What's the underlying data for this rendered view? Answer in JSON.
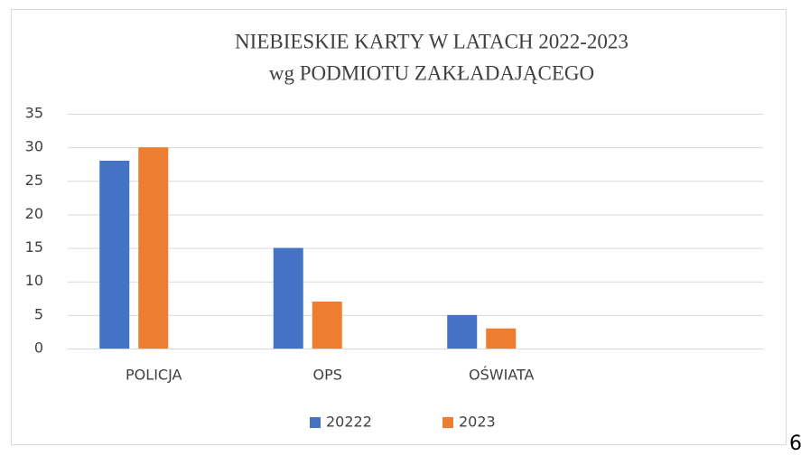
{
  "chart_data": {
    "type": "bar",
    "title": [
      "NIEBIESKIE KARTY W LATACH 2022-2023",
      "wg PODMIOTU ZAKŁADAJĄCEGO"
    ],
    "categories": [
      "POLICJA",
      "OPS",
      "OŚWIATA",
      null
    ],
    "series": [
      {
        "name": "20222",
        "color": "#4472c4",
        "values": [
          28,
          15,
          5,
          null
        ]
      },
      {
        "name": "2023",
        "color": "#ed7d31",
        "values": [
          30,
          7,
          3,
          null
        ]
      }
    ],
    "ylim": [
      0,
      35
    ],
    "yticks": [
      0,
      5,
      10,
      15,
      20,
      25,
      30,
      35
    ],
    "grid": true,
    "legend": "bottom"
  },
  "page_number": "6"
}
